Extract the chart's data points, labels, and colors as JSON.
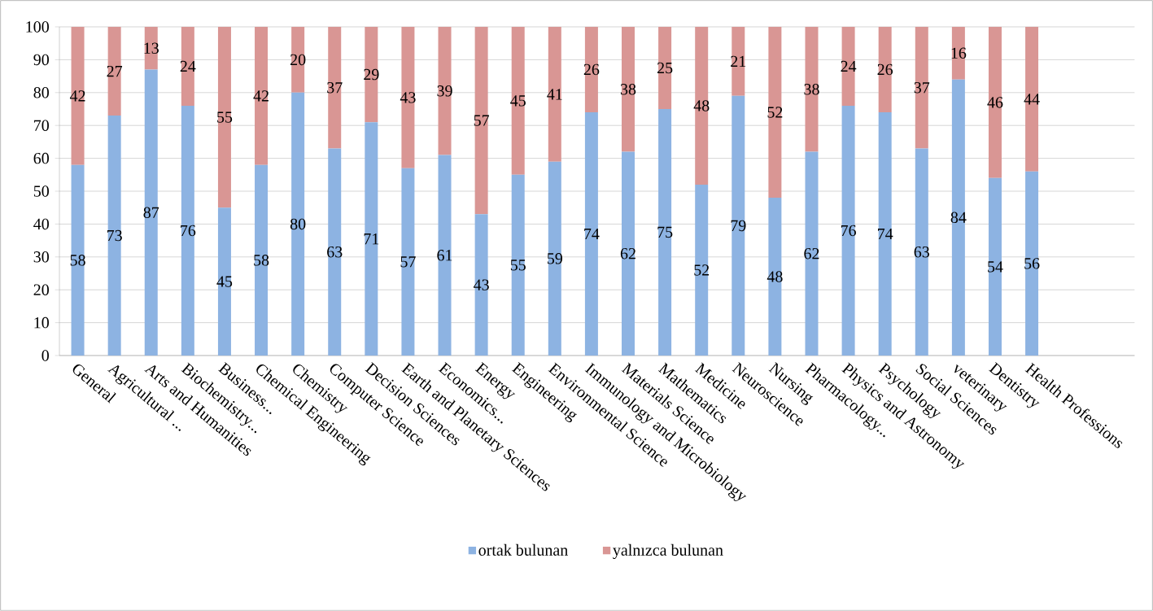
{
  "chart_data": {
    "type": "bar",
    "stacked": true,
    "categories": [
      "General",
      "Agricultural ...",
      "Arts and Humanities",
      "Biochemistry...",
      "Business...",
      "Chemical Engineering",
      "Chemistry",
      "Computer Science",
      "Decision Sciences",
      "Earth and Planetary Sciences",
      "Economics...",
      "Energy",
      "Engineering",
      "Environmental Science",
      "Immunology and Microbiology",
      "Materials Science",
      "Mathematics",
      "Medicine",
      "Neuroscience",
      "Nursing",
      "Pharmacology...",
      "Physics and Astronomy",
      "Psychology",
      "Social Sciences",
      "veterinary",
      "Dentistry",
      "Health Professions"
    ],
    "series": [
      {
        "name": "ortak bulunan",
        "color": "#8db3e2",
        "values": [
          58,
          73,
          87,
          76,
          45,
          58,
          80,
          63,
          71,
          57,
          61,
          43,
          55,
          59,
          74,
          62,
          75,
          52,
          79,
          48,
          62,
          76,
          74,
          63,
          84,
          54,
          56
        ]
      },
      {
        "name": "yalnızca bulunan",
        "color": "#d99694",
        "values": [
          42,
          27,
          13,
          24,
          55,
          42,
          20,
          37,
          29,
          43,
          39,
          57,
          45,
          41,
          26,
          38,
          25,
          48,
          21,
          52,
          38,
          24,
          26,
          37,
          16,
          46,
          44
        ]
      }
    ],
    "ylim": [
      0,
      100
    ],
    "yticks": [
      0,
      10,
      20,
      30,
      40,
      50,
      60,
      70,
      80,
      90,
      100
    ],
    "grid": "y",
    "legend": "bottom",
    "data_labels": true
  }
}
